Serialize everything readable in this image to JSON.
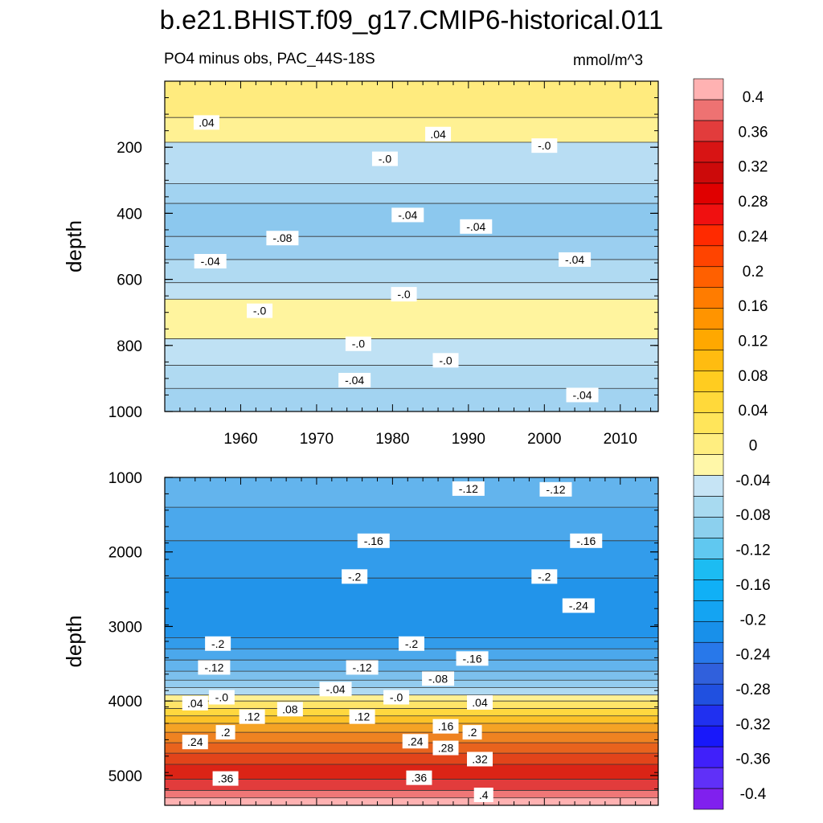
{
  "title": "b.e21.BHIST.f09_g17.CMIP6-historical.011",
  "subtitle_left": "PO4 minus obs, PAC_44S-18S",
  "subtitle_right": "mmol/m^3",
  "colors": {
    "neg_light": "#c6e4f5",
    "neg_mid": "#8cc8ee",
    "neg_deep": "#1a90ea",
    "pos_light": "#fff7a8",
    "pos_mid": "#ffd22a",
    "pos_hot": "#d81414",
    "pos_top": "#ffb2b2"
  },
  "chart_data": [
    {
      "panel": "top",
      "type": "heatmap",
      "variable": "PO4 minus obs",
      "region": "PAC_44S-18S",
      "units": "mmol/m^3",
      "xlabel": "",
      "ylabel": "depth",
      "xlim": [
        1950,
        2015
      ],
      "ylim": [
        1000,
        0
      ],
      "x_ticks": [
        1960,
        1970,
        1980,
        1990,
        2000,
        2010
      ],
      "y_ticks": [
        200,
        400,
        600,
        800,
        1000
      ],
      "layers": [
        {
          "depth_top": 0,
          "depth_bottom": 110,
          "value": 0.04
        },
        {
          "depth_top": 110,
          "depth_bottom": 185,
          "value": 0.02
        },
        {
          "depth_top": 185,
          "depth_bottom": 310,
          "value": -0.02
        },
        {
          "depth_top": 310,
          "depth_bottom": 370,
          "value": -0.05
        },
        {
          "depth_top": 370,
          "depth_bottom": 470,
          "value": -0.08
        },
        {
          "depth_top": 470,
          "depth_bottom": 540,
          "value": -0.06
        },
        {
          "depth_top": 540,
          "depth_bottom": 610,
          "value": -0.03
        },
        {
          "depth_top": 610,
          "depth_bottom": 660,
          "value": -0.01
        },
        {
          "depth_top": 660,
          "depth_bottom": 780,
          "value": 0.01
        },
        {
          "depth_top": 780,
          "depth_bottom": 860,
          "value": -0.01
        },
        {
          "depth_top": 860,
          "depth_bottom": 930,
          "value": -0.03
        },
        {
          "depth_top": 930,
          "depth_bottom": 1000,
          "value": -0.05
        }
      ],
      "contour_labels": [
        {
          "text": ".04",
          "x": 1955.5,
          "depth": 125
        },
        {
          "text": ".04",
          "x": 1986,
          "depth": 160
        },
        {
          "text": "-.0",
          "x": 2000,
          "depth": 195
        },
        {
          "text": "-.0",
          "x": 1979,
          "depth": 235
        },
        {
          "text": "-.04",
          "x": 1982,
          "depth": 405
        },
        {
          "text": "-.08",
          "x": 1965.5,
          "depth": 475
        },
        {
          "text": "-.04",
          "x": 1991,
          "depth": 440
        },
        {
          "text": "-.04",
          "x": 2004,
          "depth": 540
        },
        {
          "text": "-.04",
          "x": 1956,
          "depth": 545
        },
        {
          "text": "-.0",
          "x": 1981.5,
          "depth": 645
        },
        {
          "text": "-.0",
          "x": 1962.5,
          "depth": 695
        },
        {
          "text": "-.0",
          "x": 1975.5,
          "depth": 795
        },
        {
          "text": "-.0",
          "x": 1987,
          "depth": 845
        },
        {
          "text": "-.04",
          "x": 1975,
          "depth": 905
        },
        {
          "text": "-.04",
          "x": 2005,
          "depth": 950
        }
      ]
    },
    {
      "panel": "bottom",
      "type": "heatmap",
      "variable": "PO4 minus obs",
      "region": "PAC_44S-18S",
      "units": "mmol/m^3",
      "xlabel": "",
      "ylabel": "depth",
      "xlim": [
        1950,
        2015
      ],
      "ylim": [
        5400,
        1000
      ],
      "x_ticks": [
        1960,
        1970,
        1980,
        1990,
        2000,
        2010
      ],
      "y_ticks": [
        1000,
        2000,
        3000,
        4000,
        5000
      ],
      "layers": [
        {
          "depth_top": 1000,
          "depth_bottom": 1400,
          "value": -0.13
        },
        {
          "depth_top": 1400,
          "depth_bottom": 1850,
          "value": -0.16
        },
        {
          "depth_top": 1850,
          "depth_bottom": 2350,
          "value": -0.19
        },
        {
          "depth_top": 2350,
          "depth_bottom": 3150,
          "value": -0.21
        },
        {
          "depth_top": 3150,
          "depth_bottom": 3300,
          "value": -0.19
        },
        {
          "depth_top": 3300,
          "depth_bottom": 3450,
          "value": -0.16
        },
        {
          "depth_top": 3450,
          "depth_bottom": 3600,
          "value": -0.13
        },
        {
          "depth_top": 3600,
          "depth_bottom": 3720,
          "value": -0.1
        },
        {
          "depth_top": 3720,
          "depth_bottom": 3820,
          "value": -0.07
        },
        {
          "depth_top": 3820,
          "depth_bottom": 3920,
          "value": -0.03
        },
        {
          "depth_top": 3920,
          "depth_bottom": 4000,
          "value": 0.02
        },
        {
          "depth_top": 4000,
          "depth_bottom": 4100,
          "value": 0.06
        },
        {
          "depth_top": 4100,
          "depth_bottom": 4200,
          "value": 0.1
        },
        {
          "depth_top": 4200,
          "depth_bottom": 4300,
          "value": 0.14
        },
        {
          "depth_top": 4300,
          "depth_bottom": 4420,
          "value": 0.18
        },
        {
          "depth_top": 4420,
          "depth_bottom": 4560,
          "value": 0.22
        },
        {
          "depth_top": 4560,
          "depth_bottom": 4700,
          "value": 0.26
        },
        {
          "depth_top": 4700,
          "depth_bottom": 4850,
          "value": 0.3
        },
        {
          "depth_top": 4850,
          "depth_bottom": 5050,
          "value": 0.34
        },
        {
          "depth_top": 5050,
          "depth_bottom": 5200,
          "value": 0.38
        },
        {
          "depth_top": 5200,
          "depth_bottom": 5300,
          "value": 0.41
        },
        {
          "depth_top": 5300,
          "depth_bottom": 5400,
          "value": 0.44
        }
      ],
      "contour_labels": [
        {
          "text": "-.12",
          "x": 1990,
          "depth": 1150
        },
        {
          "text": "-.12",
          "x": 2001.5,
          "depth": 1160
        },
        {
          "text": "-.16",
          "x": 1977.5,
          "depth": 1850
        },
        {
          "text": "-.16",
          "x": 2005.5,
          "depth": 1850
        },
        {
          "text": "-.2",
          "x": 1975,
          "depth": 2330
        },
        {
          "text": "-.2",
          "x": 2000,
          "depth": 2330
        },
        {
          "text": "-.24",
          "x": 2004.5,
          "depth": 2720
        },
        {
          "text": "-.2",
          "x": 1957,
          "depth": 3230
        },
        {
          "text": "-.2",
          "x": 1982.5,
          "depth": 3230
        },
        {
          "text": "-.16",
          "x": 1990.5,
          "depth": 3430
        },
        {
          "text": "-.12",
          "x": 1956.5,
          "depth": 3550
        },
        {
          "text": "-.12",
          "x": 1976,
          "depth": 3550
        },
        {
          "text": "-.08",
          "x": 1986,
          "depth": 3700
        },
        {
          "text": "-.04",
          "x": 1972.5,
          "depth": 3840
        },
        {
          "text": "-.0",
          "x": 1957.5,
          "depth": 3950
        },
        {
          "text": "-.0",
          "x": 1980.5,
          "depth": 3950
        },
        {
          "text": ".04",
          "x": 1954,
          "depth": 4030
        },
        {
          "text": ".04",
          "x": 1991.5,
          "depth": 4020
        },
        {
          "text": ".08",
          "x": 1966.5,
          "depth": 4110
        },
        {
          "text": ".12",
          "x": 1961.5,
          "depth": 4210
        },
        {
          "text": ".12",
          "x": 1976,
          "depth": 4210
        },
        {
          "text": ".16",
          "x": 1987,
          "depth": 4340
        },
        {
          "text": ".2",
          "x": 1958,
          "depth": 4420
        },
        {
          "text": ".2",
          "x": 1990.5,
          "depth": 4420
        },
        {
          "text": ".24",
          "x": 1954,
          "depth": 4550
        },
        {
          "text": ".24",
          "x": 1983,
          "depth": 4540
        },
        {
          "text": ".28",
          "x": 1987,
          "depth": 4630
        },
        {
          "text": ".32",
          "x": 1991.5,
          "depth": 4780
        },
        {
          "text": ".36",
          "x": 1958,
          "depth": 5040
        },
        {
          "text": ".36",
          "x": 1983.5,
          "depth": 5030
        },
        {
          "text": ".4",
          "x": 1992,
          "depth": 5260
        }
      ]
    }
  ],
  "colorbar": {
    "colors": [
      "#8020ee",
      "#6030f8",
      "#4020fa",
      "#1818fa",
      "#2030f0",
      "#2050e0",
      "#3060dc",
      "#2878ea",
      "#1890ea",
      "#14a4f2",
      "#10b0f6",
      "#1cbcf2",
      "#60c8f0",
      "#8cd0ee",
      "#a8daf0",
      "#c6e4f5",
      "#fff7a8",
      "#ffee80",
      "#ffe55a",
      "#ffd93a",
      "#ffcc20",
      "#ffbc10",
      "#ffa800",
      "#ff9400",
      "#ff7c00",
      "#ff6000",
      "#ff4400",
      "#ff2a00",
      "#f01010",
      "#e00000",
      "#cc0a0a",
      "#d81414",
      "#e23c3c",
      "#ee7272",
      "#ffb2b2"
    ],
    "labels": [
      "0.4",
      "0.36",
      "0.32",
      "0.28",
      "0.24",
      "0.2",
      "0.16",
      "0.12",
      "0.08",
      "0.04",
      "0",
      "-0.04",
      "-0.08",
      "-0.12",
      "-0.16",
      "-0.2",
      "-0.24",
      "-0.28",
      "-0.32",
      "-0.36",
      "-0.4"
    ]
  }
}
